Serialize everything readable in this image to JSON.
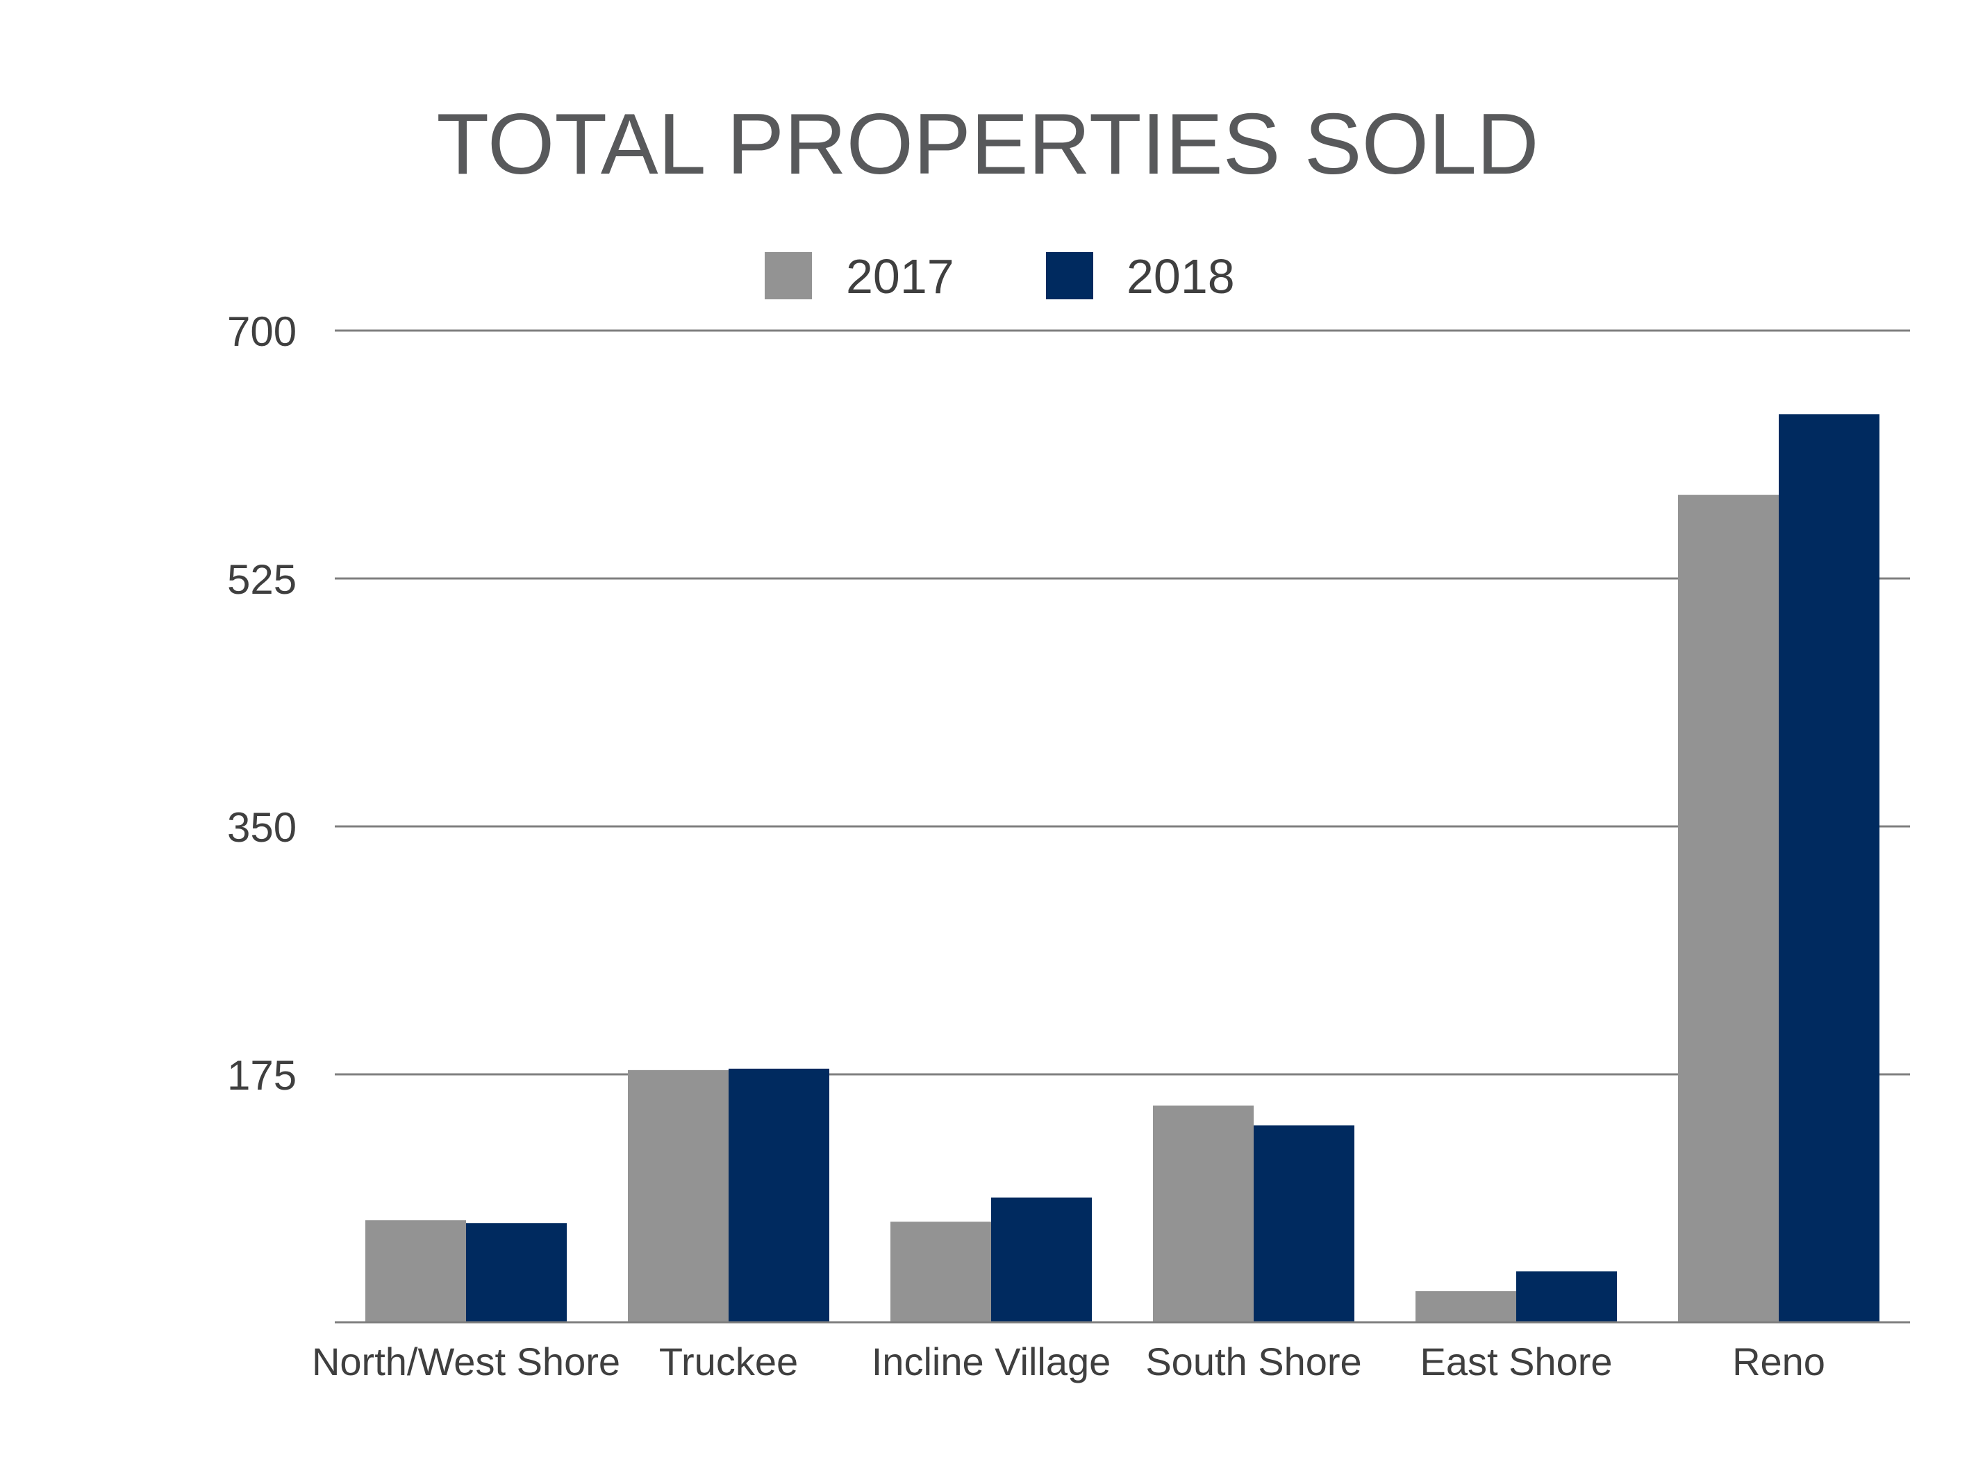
{
  "chart_data": {
    "type": "bar",
    "title": "TOTAL PROPERTIES SOLD",
    "xlabel": "",
    "ylabel": "",
    "categories": [
      "North/West Shore",
      "Truckee",
      "Incline Village",
      "South Shore",
      "East Shore",
      "Reno"
    ],
    "series": [
      {
        "name": "2017",
        "color": "#939393",
        "values": [
          72,
          178,
          71,
          153,
          22,
          584
        ]
      },
      {
        "name": "2018",
        "color": "#002a5f",
        "values": [
          70,
          179,
          88,
          139,
          36,
          641
        ]
      }
    ],
    "ylim": [
      0,
      700
    ],
    "yticks": [
      "175",
      "350",
      "525",
      "700"
    ],
    "grid": true,
    "legend_position": "top-center",
    "colors": {
      "gridline": "#7f7f7f",
      "text": "#3f3f3f",
      "title": "#58595b"
    }
  }
}
